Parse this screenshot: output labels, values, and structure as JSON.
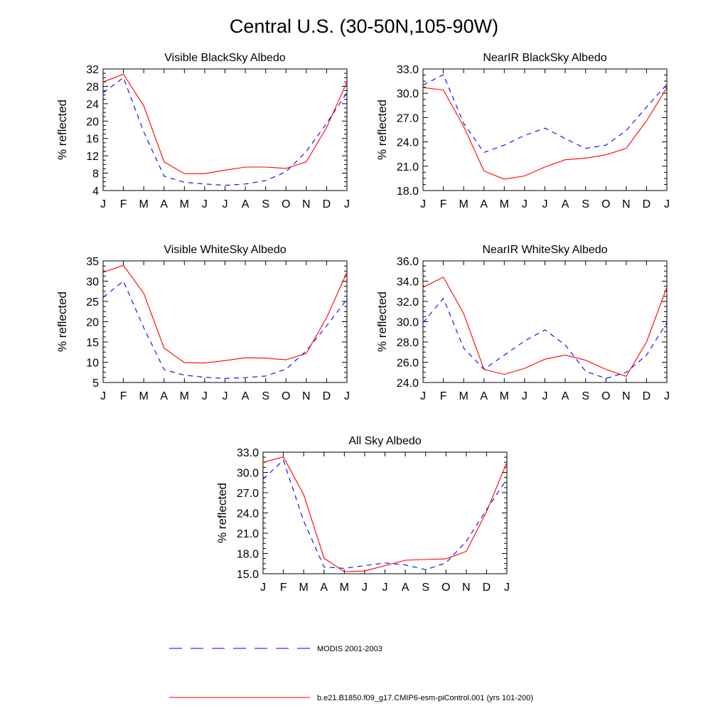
{
  "title": "Central U.S. (30-50N,105-90W)",
  "legend": [
    {
      "label": "MODIS 2001-2003",
      "color": "#0000ff",
      "dash": true
    },
    {
      "label": "b.e21.B1850.f09_g17.CMIP6-esm-piControl.001 (yrs 101-200)",
      "color": "#ff0000",
      "dash": false
    }
  ],
  "chart_data": [
    {
      "type": "line",
      "title": "Visible BlackSky Albedo",
      "ylabel": "% reflected",
      "categories": [
        "J",
        "F",
        "M",
        "A",
        "M",
        "J",
        "J",
        "A",
        "S",
        "O",
        "N",
        "D",
        "J"
      ],
      "ylim": [
        4,
        32
      ],
      "yticks": [
        4,
        8,
        12,
        16,
        20,
        24,
        28,
        32
      ],
      "ytick_labels": [
        "4",
        "8",
        "12",
        "16",
        "20",
        "24",
        "28",
        "32"
      ],
      "series": [
        {
          "name": "MODIS 2001-2003",
          "values": [
            26.5,
            30.0,
            17.5,
            7.3,
            5.9,
            5.5,
            5.2,
            5.5,
            6.3,
            8.3,
            13.0,
            19.5,
            26.5
          ]
        },
        {
          "name": "b.e21.B1850.f09_g17.CMIP6-esm-piControl.001 (yrs 101-200)",
          "values": [
            29.0,
            30.8,
            23.5,
            10.6,
            7.9,
            7.9,
            8.7,
            9.4,
            9.4,
            9.1,
            10.6,
            18.5,
            29.0
          ]
        }
      ]
    },
    {
      "type": "line",
      "title": "NearIR BlackSky Albedo",
      "ylabel": "% reflected",
      "categories": [
        "J",
        "F",
        "M",
        "A",
        "M",
        "J",
        "J",
        "A",
        "S",
        "O",
        "N",
        "D",
        "J"
      ],
      "ylim": [
        18.0,
        33.0
      ],
      "yticks": [
        18,
        21,
        24,
        27,
        30,
        33
      ],
      "ytick_labels": [
        "18.0",
        "21.0",
        "24.0",
        "27.0",
        "30.0",
        "33.0"
      ],
      "series": [
        {
          "name": "MODIS 2001-2003",
          "values": [
            31.0,
            32.3,
            26.3,
            22.7,
            23.6,
            24.8,
            25.7,
            24.4,
            23.2,
            23.6,
            25.4,
            28.3,
            31.1
          ]
        },
        {
          "name": "b.e21.B1850.f09_g17.CMIP6-esm-piControl.001 (yrs 101-200)",
          "values": [
            30.7,
            30.4,
            25.9,
            20.4,
            19.4,
            19.8,
            20.9,
            21.8,
            22.0,
            22.4,
            23.2,
            26.6,
            30.7
          ]
        }
      ]
    },
    {
      "type": "line",
      "title": "Visible WhiteSky Albedo",
      "ylabel": "% reflected",
      "categories": [
        "J",
        "F",
        "M",
        "A",
        "M",
        "J",
        "J",
        "A",
        "S",
        "O",
        "N",
        "D",
        "J"
      ],
      "ylim": [
        5,
        35
      ],
      "yticks": [
        5,
        10,
        15,
        20,
        25,
        30,
        35
      ],
      "ytick_labels": [
        "5",
        "10",
        "15",
        "20",
        "25",
        "30",
        "35"
      ],
      "series": [
        {
          "name": "MODIS 2001-2003",
          "values": [
            26.0,
            30.0,
            18.5,
            8.2,
            6.8,
            6.3,
            6.0,
            6.2,
            6.6,
            8.3,
            12.8,
            19.0,
            25.5
          ]
        },
        {
          "name": "b.e21.B1850.f09_g17.CMIP6-esm-piControl.001 (yrs 101-200)",
          "values": [
            32.2,
            33.9,
            27.0,
            13.5,
            9.9,
            9.8,
            10.4,
            11.1,
            11.0,
            10.6,
            12.2,
            21.0,
            32.2
          ]
        }
      ]
    },
    {
      "type": "line",
      "title": "NearIR WhiteSky Albedo",
      "ylabel": "% reflected",
      "categories": [
        "J",
        "F",
        "M",
        "A",
        "M",
        "J",
        "J",
        "A",
        "S",
        "O",
        "N",
        "D",
        "J"
      ],
      "ylim": [
        24.0,
        36.0
      ],
      "yticks": [
        24,
        26,
        28,
        30,
        32,
        34,
        36
      ],
      "ytick_labels": [
        "24.0",
        "26.0",
        "28.0",
        "30.0",
        "32.0",
        "34.0",
        "36.0"
      ],
      "series": [
        {
          "name": "MODIS 2001-2003",
          "values": [
            29.9,
            32.3,
            27.4,
            25.3,
            26.7,
            28.1,
            29.2,
            27.7,
            25.1,
            24.4,
            25.0,
            26.7,
            29.9
          ]
        },
        {
          "name": "b.e21.B1850.f09_g17.CMIP6-esm-piControl.001 (yrs 101-200)",
          "values": [
            33.4,
            34.4,
            30.8,
            25.3,
            24.8,
            25.4,
            26.3,
            26.7,
            26.2,
            25.3,
            24.6,
            28.0,
            33.4
          ]
        }
      ]
    },
    {
      "type": "line",
      "title": "All Sky Albedo",
      "ylabel": "% reflected",
      "categories": [
        "J",
        "F",
        "M",
        "A",
        "M",
        "J",
        "J",
        "A",
        "S",
        "O",
        "N",
        "D",
        "J"
      ],
      "ylim": [
        15.0,
        33.0
      ],
      "yticks": [
        15,
        18,
        21,
        24,
        27,
        30,
        33
      ],
      "ytick_labels": [
        "15.0",
        "18.0",
        "21.0",
        "24.0",
        "27.0",
        "30.0",
        "33.0"
      ],
      "series": [
        {
          "name": "MODIS 2001-2003",
          "values": [
            29.0,
            31.8,
            22.8,
            16.0,
            15.8,
            16.2,
            16.6,
            16.3,
            15.6,
            16.6,
            19.8,
            24.5,
            29.0
          ]
        },
        {
          "name": "b.e21.B1850.f09_g17.CMIP6-esm-piControl.001 (yrs 101-200)",
          "values": [
            31.5,
            32.3,
            26.7,
            17.3,
            15.3,
            15.4,
            16.2,
            17.0,
            17.1,
            17.2,
            18.3,
            24.2,
            31.5
          ]
        }
      ]
    }
  ]
}
